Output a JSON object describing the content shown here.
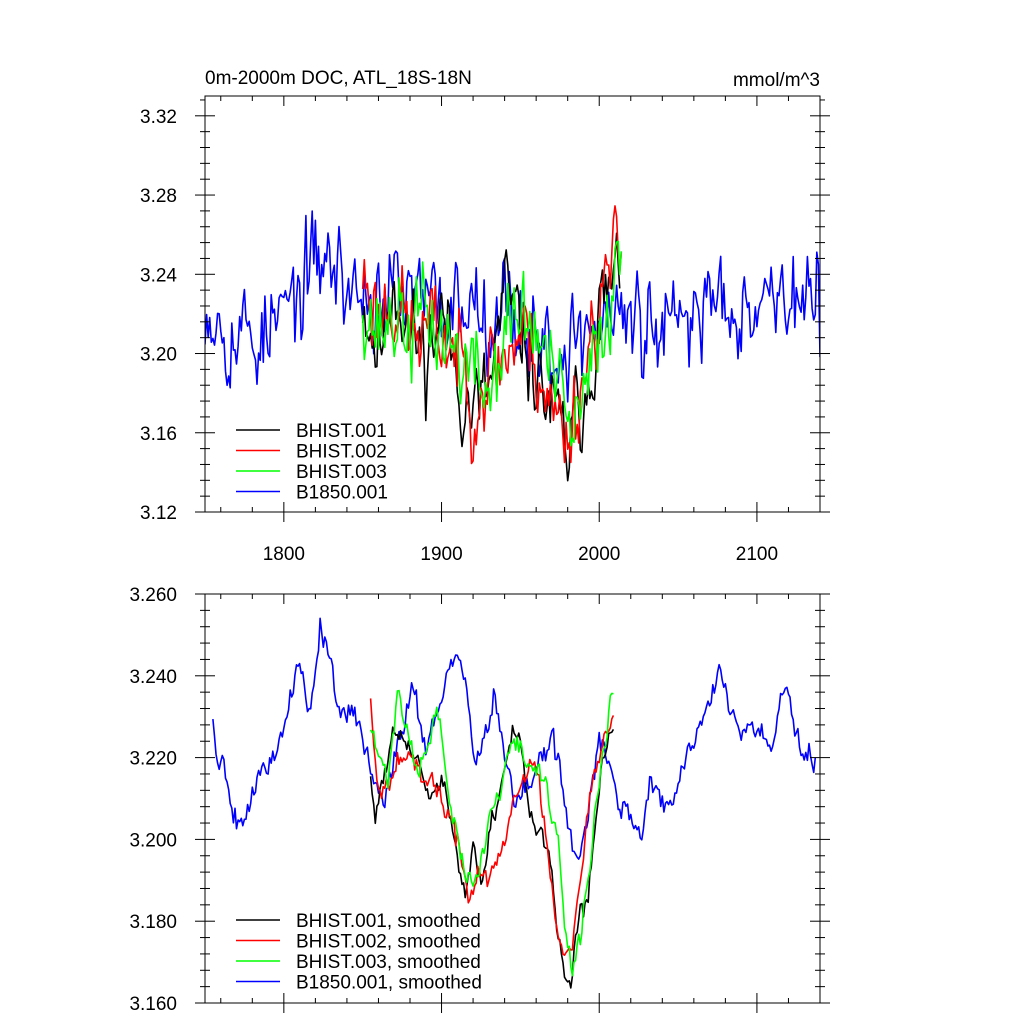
{
  "chart_data": [
    {
      "type": "line",
      "title": "0m-2000m DOC, ATL_18S-18N",
      "units": "mmol/m^3",
      "xlabel": "",
      "ylabel": "",
      "xlim": [
        1750,
        2140
      ],
      "ylim": [
        3.12,
        3.33
      ],
      "xticks": [
        1800,
        1900,
        2000,
        2100
      ],
      "xtick_labels": [
        "1800",
        "1900",
        "2000",
        "2100"
      ],
      "yticks": [
        3.12,
        3.16,
        3.2,
        3.24,
        3.28,
        3.32
      ],
      "ytick_labels": [
        "3.12",
        "3.16",
        "3.20",
        "3.24",
        "3.28",
        "3.32"
      ],
      "legend_position": "bottom-left",
      "series": [
        {
          "name": "BHIST.001",
          "color": "#000000",
          "x_start": 1850,
          "x_end": 2013,
          "mean": 3.21,
          "noise": 0.021,
          "seed": 11,
          "anchors": [
            [
              1850,
              3.23
            ],
            [
              1860,
              3.2
            ],
            [
              1870,
              3.24
            ],
            [
              1880,
              3.21
            ],
            [
              1890,
              3.2
            ],
            [
              1900,
              3.22
            ],
            [
              1910,
              3.19
            ],
            [
              1920,
              3.17
            ],
            [
              1930,
              3.18
            ],
            [
              1940,
              3.23
            ],
            [
              1950,
              3.21
            ],
            [
              1960,
              3.19
            ],
            [
              1970,
              3.17
            ],
            [
              1980,
              3.15
            ],
            [
              1990,
              3.18
            ],
            [
              2000,
              3.22
            ],
            [
              2013,
              3.24
            ]
          ]
        },
        {
          "name": "BHIST.002",
          "color": "#ff0000",
          "x_start": 1850,
          "x_end": 2014,
          "mean": 3.21,
          "noise": 0.021,
          "seed": 23,
          "anchors": [
            [
              1850,
              3.24
            ],
            [
              1860,
              3.22
            ],
            [
              1870,
              3.23
            ],
            [
              1880,
              3.21
            ],
            [
              1890,
              3.21
            ],
            [
              1900,
              3.21
            ],
            [
              1910,
              3.2
            ],
            [
              1920,
              3.18
            ],
            [
              1930,
              3.19
            ],
            [
              1940,
              3.2
            ],
            [
              1950,
              3.21
            ],
            [
              1960,
              3.2
            ],
            [
              1970,
              3.17
            ],
            [
              1980,
              3.16
            ],
            [
              1990,
              3.19
            ],
            [
              2000,
              3.23
            ],
            [
              2014,
              3.25
            ]
          ]
        },
        {
          "name": "BHIST.003",
          "color": "#00ff00",
          "x_start": 1850,
          "x_end": 2014,
          "mean": 3.21,
          "noise": 0.021,
          "seed": 37,
          "anchors": [
            [
              1850,
              3.23
            ],
            [
              1860,
              3.21
            ],
            [
              1870,
              3.22
            ],
            [
              1880,
              3.21
            ],
            [
              1890,
              3.22
            ],
            [
              1900,
              3.21
            ],
            [
              1910,
              3.2
            ],
            [
              1920,
              3.19
            ],
            [
              1930,
              3.18
            ],
            [
              1940,
              3.21
            ],
            [
              1950,
              3.22
            ],
            [
              1960,
              3.21
            ],
            [
              1970,
              3.19
            ],
            [
              1980,
              3.16
            ],
            [
              1990,
              3.17
            ],
            [
              2000,
              3.21
            ],
            [
              2014,
              3.25
            ]
          ]
        },
        {
          "name": "B1850.001",
          "color": "#0000ff",
          "x_start": 1750,
          "x_end": 2140,
          "mean": 3.22,
          "noise": 0.022,
          "seed": 53,
          "anchors": [
            [
              1750,
              3.23
            ],
            [
              1770,
              3.21
            ],
            [
              1790,
              3.21
            ],
            [
              1810,
              3.23
            ],
            [
              1825,
              3.25
            ],
            [
              1845,
              3.23
            ],
            [
              1870,
              3.23
            ],
            [
              1900,
              3.22
            ],
            [
              1920,
              3.23
            ],
            [
              1950,
              3.22
            ],
            [
              1970,
              3.2
            ],
            [
              1990,
              3.21
            ],
            [
              2010,
              3.22
            ],
            [
              2030,
              3.21
            ],
            [
              2050,
              3.21
            ],
            [
              2070,
              3.23
            ],
            [
              2100,
              3.23
            ],
            [
              2120,
              3.23
            ],
            [
              2140,
              3.22
            ]
          ]
        }
      ]
    },
    {
      "type": "line",
      "title": "",
      "xlabel": "",
      "ylabel": "",
      "xlim": [
        1750,
        2140
      ],
      "ylim": [
        3.16,
        3.26
      ],
      "xticks": [
        1800,
        1900,
        2000,
        2100
      ],
      "yticks": [
        3.16,
        3.18,
        3.2,
        3.22,
        3.24,
        3.26
      ],
      "ytick_labels": [
        "3.160",
        "3.180",
        "3.200",
        "3.220",
        "3.240",
        "3.260"
      ],
      "legend_position": "bottom-left",
      "series": [
        {
          "name": "BHIST.001, smoothed",
          "color": "#000000",
          "x_start": 1855,
          "x_end": 2009,
          "noise": 0.0025,
          "seed": 61,
          "anchors": [
            [
              1855,
              3.215
            ],
            [
              1858,
              3.205
            ],
            [
              1862,
              3.213
            ],
            [
              1870,
              3.226
            ],
            [
              1878,
              3.222
            ],
            [
              1885,
              3.22
            ],
            [
              1892,
              3.208
            ],
            [
              1900,
              3.216
            ],
            [
              1908,
              3.198
            ],
            [
              1915,
              3.187
            ],
            [
              1920,
              3.196
            ],
            [
              1926,
              3.19
            ],
            [
              1933,
              3.206
            ],
            [
              1940,
              3.216
            ],
            [
              1945,
              3.228
            ],
            [
              1950,
              3.225
            ],
            [
              1956,
              3.206
            ],
            [
              1962,
              3.2
            ],
            [
              1968,
              3.196
            ],
            [
              1973,
              3.178
            ],
            [
              1978,
              3.168
            ],
            [
              1982,
              3.166
            ],
            [
              1987,
              3.182
            ],
            [
              1993,
              3.186
            ],
            [
              1998,
              3.205
            ],
            [
              2003,
              3.22
            ],
            [
              2009,
              3.228
            ]
          ]
        },
        {
          "name": "BHIST.002, smoothed",
          "color": "#ff0000",
          "x_start": 1855,
          "x_end": 2009,
          "noise": 0.0025,
          "seed": 67,
          "anchors": [
            [
              1855,
              3.235
            ],
            [
              1860,
              3.212
            ],
            [
              1866,
              3.214
            ],
            [
              1872,
              3.222
            ],
            [
              1880,
              3.22
            ],
            [
              1888,
              3.213
            ],
            [
              1896,
              3.214
            ],
            [
              1905,
              3.205
            ],
            [
              1912,
              3.196
            ],
            [
              1917,
              3.186
            ],
            [
              1923,
              3.192
            ],
            [
              1930,
              3.19
            ],
            [
              1938,
              3.196
            ],
            [
              1945,
              3.208
            ],
            [
              1950,
              3.213
            ],
            [
              1956,
              3.22
            ],
            [
              1962,
              3.213
            ],
            [
              1968,
              3.196
            ],
            [
              1973,
              3.18
            ],
            [
              1978,
              3.172
            ],
            [
              1983,
              3.176
            ],
            [
              1989,
              3.196
            ],
            [
              1995,
              3.212
            ],
            [
              2002,
              3.222
            ],
            [
              2009,
              3.234
            ]
          ]
        },
        {
          "name": "BHIST.003, smoothed",
          "color": "#00ff00",
          "x_start": 1855,
          "x_end": 2009,
          "noise": 0.0025,
          "seed": 71,
          "anchors": [
            [
              1855,
              3.227
            ],
            [
              1860,
              3.22
            ],
            [
              1866,
              3.215
            ],
            [
              1872,
              3.236
            ],
            [
              1878,
              3.228
            ],
            [
              1884,
              3.218
            ],
            [
              1892,
              3.222
            ],
            [
              1897,
              3.233
            ],
            [
              1902,
              3.218
            ],
            [
              1908,
              3.203
            ],
            [
              1914,
              3.193
            ],
            [
              1920,
              3.188
            ],
            [
              1926,
              3.196
            ],
            [
              1932,
              3.208
            ],
            [
              1938,
              3.212
            ],
            [
              1944,
              3.226
            ],
            [
              1950,
              3.224
            ],
            [
              1956,
              3.215
            ],
            [
              1962,
              3.218
            ],
            [
              1968,
              3.21
            ],
            [
              1974,
              3.2
            ],
            [
              1978,
              3.178
            ],
            [
              1983,
              3.166
            ],
            [
              1988,
              3.176
            ],
            [
              1994,
              3.194
            ],
            [
              2001,
              3.218
            ],
            [
              2009,
              3.238
            ]
          ]
        },
        {
          "name": "B1850.001, smoothed",
          "color": "#0000ff",
          "x_start": 1755,
          "x_end": 2137,
          "noise": 0.003,
          "seed": 79,
          "anchors": [
            [
              1755,
              3.229
            ],
            [
              1758,
              3.219
            ],
            [
              1762,
              3.22
            ],
            [
              1766,
              3.21
            ],
            [
              1770,
              3.205
            ],
            [
              1776,
              3.207
            ],
            [
              1785,
              3.216
            ],
            [
              1795,
              3.222
            ],
            [
              1805,
              3.236
            ],
            [
              1810,
              3.243
            ],
            [
              1815,
              3.232
            ],
            [
              1818,
              3.235
            ],
            [
              1823,
              3.253
            ],
            [
              1828,
              3.248
            ],
            [
              1833,
              3.232
            ],
            [
              1840,
              3.23
            ],
            [
              1848,
              3.228
            ],
            [
              1855,
              3.22
            ],
            [
              1862,
              3.208
            ],
            [
              1868,
              3.218
            ],
            [
              1875,
              3.227
            ],
            [
              1882,
              3.238
            ],
            [
              1890,
              3.223
            ],
            [
              1900,
              3.234
            ],
            [
              1910,
              3.246
            ],
            [
              1916,
              3.235
            ],
            [
              1922,
              3.22
            ],
            [
              1928,
              3.225
            ],
            [
              1933,
              3.236
            ],
            [
              1940,
              3.219
            ],
            [
              1948,
              3.208
            ],
            [
              1956,
              3.214
            ],
            [
              1963,
              3.22
            ],
            [
              1970,
              3.223
            ],
            [
              1975,
              3.218
            ],
            [
              1982,
              3.2
            ],
            [
              1988,
              3.194
            ],
            [
              1994,
              3.208
            ],
            [
              2000,
              3.223
            ],
            [
              2006,
              3.218
            ],
            [
              2012,
              3.21
            ],
            [
              2020,
              3.208
            ],
            [
              2026,
              3.2
            ],
            [
              2032,
              3.212
            ],
            [
              2038,
              3.212
            ],
            [
              2045,
              3.206
            ],
            [
              2052,
              3.216
            ],
            [
              2060,
              3.224
            ],
            [
              2068,
              3.232
            ],
            [
              2076,
              3.24
            ],
            [
              2083,
              3.234
            ],
            [
              2090,
              3.225
            ],
            [
              2098,
              3.228
            ],
            [
              2105,
              3.222
            ],
            [
              2112,
              3.226
            ],
            [
              2118,
              3.237
            ],
            [
              2124,
              3.228
            ],
            [
              2130,
              3.22
            ],
            [
              2137,
              3.218
            ]
          ]
        }
      ]
    }
  ]
}
